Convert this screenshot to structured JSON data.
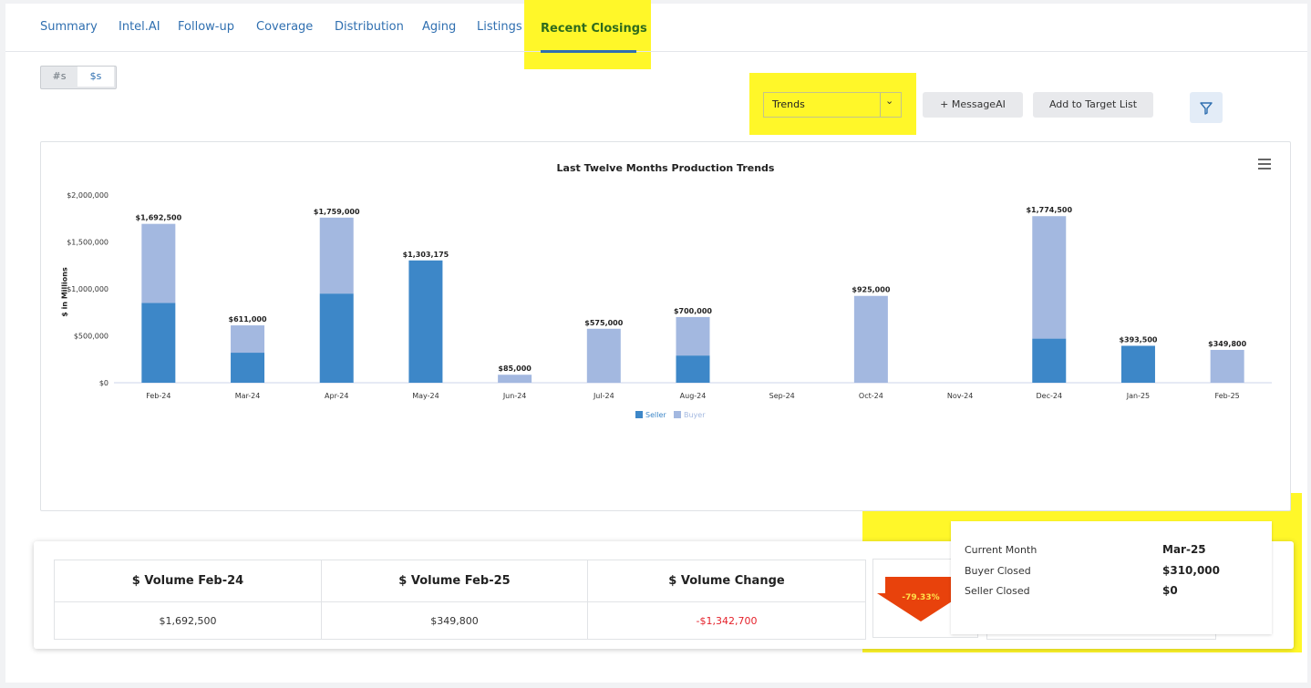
{
  "tabs": [
    {
      "label": "Summary"
    },
    {
      "label": "Intel.AI"
    },
    {
      "label": "Follow-up"
    },
    {
      "label": "Coverage"
    },
    {
      "label": "Distribution"
    },
    {
      "label": "Aging"
    },
    {
      "label": "Listings"
    },
    {
      "label": "Recent Closings",
      "active": true
    }
  ],
  "toggle": {
    "count_label": "#s",
    "dollar_label": "$s",
    "selected": "$s"
  },
  "view_select": {
    "value": "Trends"
  },
  "buttons": {
    "message": "+ MessageAI",
    "target": "Add to Target List",
    "filter_icon": "filter-icon"
  },
  "chart_data": {
    "type": "bar",
    "stacked": true,
    "title": "Last Twelve Months Production Trends",
    "ylabel": "$ in Millions",
    "ylim": [
      0,
      2000000
    ],
    "yticks": [
      "$0",
      "$500,000",
      "$1,000,000",
      "$1,500,000",
      "$2,000,000"
    ],
    "categories": [
      "Feb-24",
      "Mar-24",
      "Apr-24",
      "May-24",
      "Jun-24",
      "Jul-24",
      "Aug-24",
      "Sep-24",
      "Oct-24",
      "Nov-24",
      "Dec-24",
      "Jan-25",
      "Feb-25"
    ],
    "series": [
      {
        "name": "Seller",
        "color": "#3d87c8",
        "values": [
          850000,
          320000,
          950000,
          1303175,
          0,
          0,
          290000,
          0,
          0,
          0,
          470000,
          393500,
          0
        ]
      },
      {
        "name": "Buyer",
        "color": "#a3b8e0",
        "values": [
          842500,
          291000,
          809000,
          0,
          85000,
          575000,
          410000,
          0,
          925000,
          0,
          1304500,
          0,
          349800
        ]
      }
    ],
    "totals": [
      "$1,692,500",
      "$611,000",
      "$1,759,000",
      "$1,303,175",
      "$85,000",
      "$575,000",
      "$700,000",
      "",
      "$925,000",
      "",
      "$1,774,500",
      "$393,500",
      "$349,800"
    ],
    "legend_position": "bottom-center",
    "grid": false
  },
  "stats": {
    "headers": [
      "$ Volume Feb-24",
      "$ Volume Feb-25",
      "$ Volume Change"
    ],
    "values": [
      "$1,692,500",
      "$349,800",
      "-$1,342,700"
    ],
    "change_pct": "-79.33%"
  },
  "tooltip": {
    "rows": [
      {
        "label": "Current Month",
        "value": "Mar-25"
      },
      {
        "label": "Buyer Closed",
        "value": "$310,000"
      },
      {
        "label": "Seller Closed",
        "value": "$0"
      }
    ]
  },
  "colors": {
    "highlight": "#fff729",
    "accent": "#2f6fb0",
    "active_tab": "#2f6b1c",
    "negative": "#e5222b",
    "arrow": "#e8420c"
  }
}
